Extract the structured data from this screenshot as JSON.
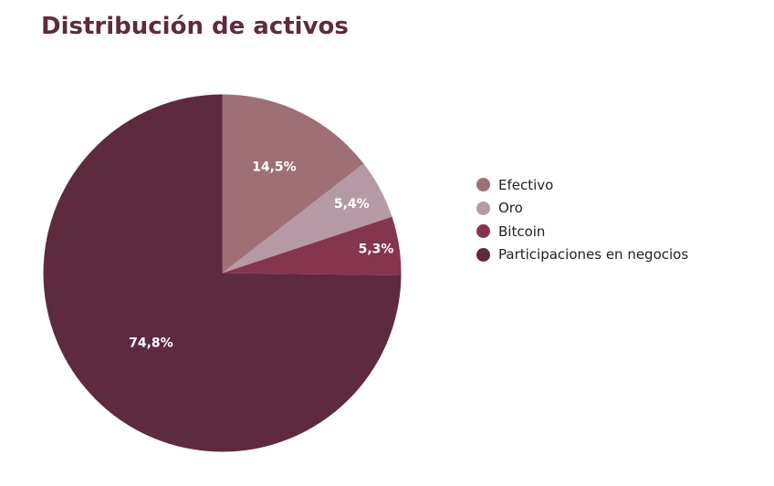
{
  "chart_data": {
    "type": "pie",
    "title": "Distribución de activos",
    "slices": [
      {
        "name": "Efectivo",
        "value": 14.5,
        "label": "14,5%",
        "color": "#9e6f74"
      },
      {
        "name": "Oro",
        "value": 5.4,
        "label": "5,4%",
        "color": "#b59aa6"
      },
      {
        "name": "Bitcoin",
        "value": 5.3,
        "label": "5,3%",
        "color": "#86354f"
      },
      {
        "name": "Participaciones en negocios",
        "value": 74.8,
        "label": "74,8%",
        "color": "#5e2a40"
      }
    ],
    "legend_position": "right",
    "start_angle": "top",
    "direction": "clockwise"
  },
  "colors": {
    "title": "#5e2a40",
    "slice_label": "#ffffff",
    "legend_text": "#222222"
  }
}
